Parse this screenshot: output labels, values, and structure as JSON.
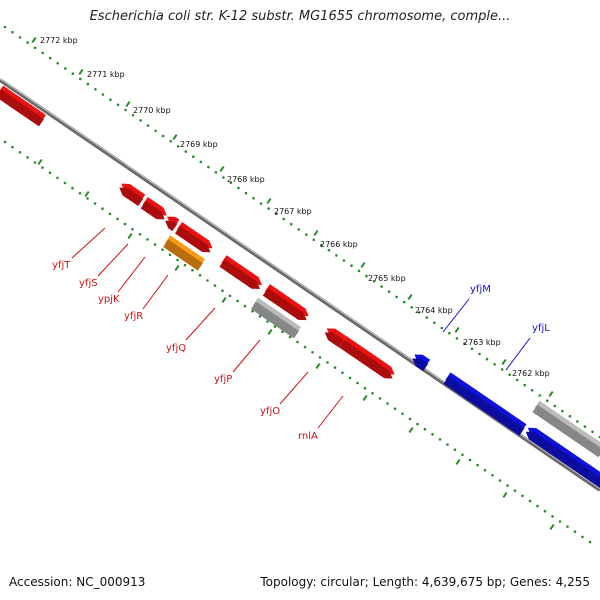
{
  "title": "Escherichia coli str. K-12 substr. MG1655 chromosome, comple...",
  "footer": {
    "accession": "Accession: NC_000913",
    "topology": "Topology: circular; Length: 4,639,675 bp; Genes: 4,255"
  },
  "colors": {
    "tick": "#2a8a2a",
    "backbone": "#777777",
    "forward_gene": "#ee1111",
    "reverse_gene": "#1111dd",
    "pseudogene": "#ff9911",
    "other_feature": "#bbbbbb",
    "forward_label": "#cc1111",
    "reverse_label": "#1111cc"
  },
  "scale_labels": [
    "2772 kbp",
    "2771 kbp",
    "2770 kbp",
    "2769 kbp",
    "2768 kbp",
    "2767 kbp",
    "2766 kbp",
    "2765 kbp",
    "2764 kbp",
    "2763 kbp",
    "2762 kbp"
  ],
  "genes": [
    {
      "name": "yfjT",
      "strand": "forward"
    },
    {
      "name": "yfjS",
      "strand": "forward"
    },
    {
      "name": "ypjK",
      "strand": "forward"
    },
    {
      "name": "yfjR",
      "strand": "forward"
    },
    {
      "name": "yfjQ",
      "strand": "forward"
    },
    {
      "name": "yfjP",
      "strand": "forward"
    },
    {
      "name": "yfjO",
      "strand": "forward"
    },
    {
      "name": "rnlA",
      "strand": "forward"
    },
    {
      "name": "yfjM",
      "strand": "reverse"
    },
    {
      "name": "yfjL",
      "strand": "reverse"
    }
  ]
}
